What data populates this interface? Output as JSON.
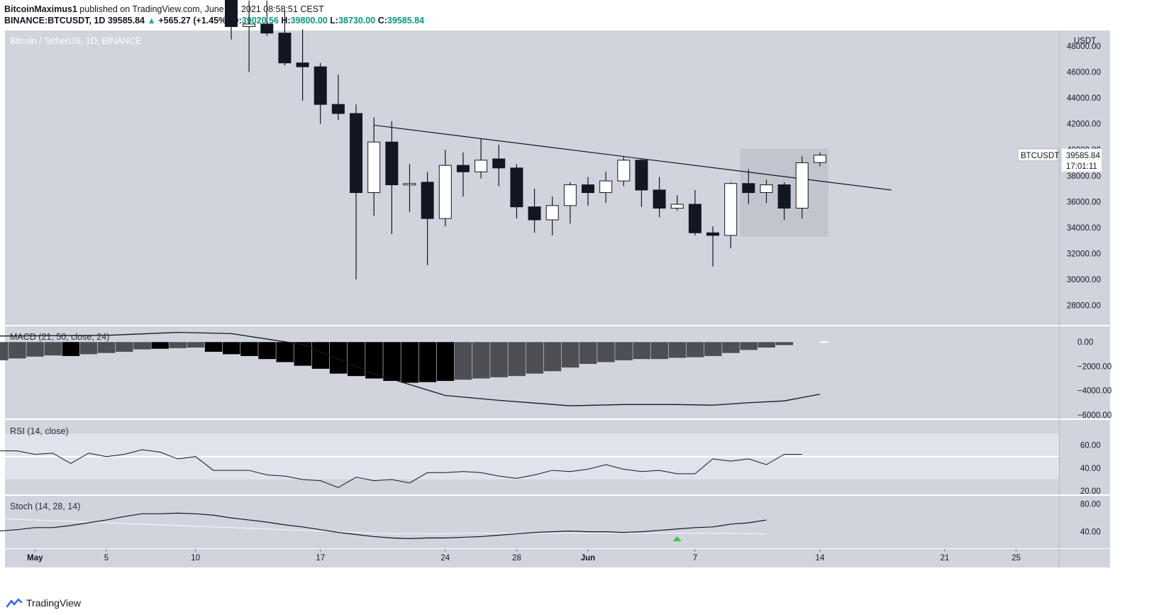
{
  "header": {
    "author": "BitcoinMaximus1",
    "published": "published on TradingView.com, June 14, 2021 08:58:51 CEST",
    "symbol_line": "BINANCE:BTCUSDT, 1D",
    "last": "39585.84",
    "change": "+565.27 (+1.45%)",
    "o_label": "O:",
    "o": "39020.56",
    "h_label": "H:",
    "h": "39800.00",
    "l_label": "L:",
    "l": "38730.00",
    "c_label": "C:",
    "c": "39585.84"
  },
  "footer": {
    "brand": "TradingView"
  },
  "colors": {
    "background": "#d1d4dc",
    "bull_body": "#ffffff",
    "bear_body": "#131722",
    "macd_hist": "#4d4f55",
    "macd_hist_dark": "#000000",
    "rsi_band": "#e0e3eb",
    "green_marker": "#2ecc40"
  },
  "chart_data": [
    {
      "type": "candlestick",
      "title": "Bitcoin / TetherUS, 1D, BINANCE",
      "price_axis_label": "USDT",
      "ylim": [
        26500,
        49200
      ],
      "y_ticks": [
        "48000.00",
        "46000.00",
        "44000.00",
        "42000.00",
        "40000.00",
        "38000.00",
        "36000.00",
        "34000.00",
        "32000.00",
        "30000.00",
        "28000.00"
      ],
      "x_ticks": [
        "May",
        "5",
        "10",
        "17",
        "24",
        "28",
        "Jun",
        "7",
        "14",
        "21",
        "25"
      ],
      "dates": [
        "2021-05-12",
        "2021-05-13",
        "2021-05-14",
        "2021-05-15",
        "2021-05-16",
        "2021-05-17",
        "2021-05-18",
        "2021-05-19",
        "2021-05-20",
        "2021-05-21",
        "2021-05-22",
        "2021-05-23",
        "2021-05-24",
        "2021-05-25",
        "2021-05-26",
        "2021-05-27",
        "2021-05-28",
        "2021-05-29",
        "2021-05-30",
        "2021-05-31",
        "2021-06-01",
        "2021-06-02",
        "2021-06-03",
        "2021-06-04",
        "2021-06-05",
        "2021-06-06",
        "2021-06-07",
        "2021-06-08",
        "2021-06-09",
        "2021-06-10",
        "2021-06-11",
        "2021-06-12",
        "2021-06-13",
        "2021-06-14"
      ],
      "candles": [
        {
          "o": 56700,
          "h": 58000,
          "l": 48500,
          "c": 49500
        },
        {
          "o": 49500,
          "h": 51500,
          "l": 46000,
          "c": 49700
        },
        {
          "o": 49700,
          "h": 51500,
          "l": 48800,
          "c": 49000
        },
        {
          "o": 49000,
          "h": 50700,
          "l": 46500,
          "c": 46700
        },
        {
          "o": 46700,
          "h": 49300,
          "l": 43800,
          "c": 46400
        },
        {
          "o": 46400,
          "h": 46700,
          "l": 42000,
          "c": 43500
        },
        {
          "o": 43500,
          "h": 45800,
          "l": 42300,
          "c": 42800
        },
        {
          "o": 42800,
          "h": 43500,
          "l": 30000,
          "c": 36700
        },
        {
          "o": 36700,
          "h": 42500,
          "l": 34900,
          "c": 40600
        },
        {
          "o": 40600,
          "h": 42200,
          "l": 33500,
          "c": 37300
        },
        {
          "o": 37300,
          "h": 38900,
          "l": 35200,
          "c": 37400
        },
        {
          "o": 37500,
          "h": 38300,
          "l": 31100,
          "c": 34700
        },
        {
          "o": 34700,
          "h": 40000,
          "l": 34100,
          "c": 38800
        },
        {
          "o": 38800,
          "h": 39800,
          "l": 36400,
          "c": 38300
        },
        {
          "o": 38300,
          "h": 40900,
          "l": 37800,
          "c": 39200
        },
        {
          "o": 39300,
          "h": 40400,
          "l": 37200,
          "c": 38600
        },
        {
          "o": 38600,
          "h": 38900,
          "l": 34700,
          "c": 35600
        },
        {
          "o": 35600,
          "h": 37000,
          "l": 33600,
          "c": 34600
        },
        {
          "o": 34600,
          "h": 36400,
          "l": 33400,
          "c": 35700
        },
        {
          "o": 35700,
          "h": 37500,
          "l": 34300,
          "c": 37300
        },
        {
          "o": 37300,
          "h": 37900,
          "l": 35700,
          "c": 36700
        },
        {
          "o": 36700,
          "h": 38300,
          "l": 35900,
          "c": 37600
        },
        {
          "o": 37600,
          "h": 39500,
          "l": 37200,
          "c": 39200
        },
        {
          "o": 39200,
          "h": 39300,
          "l": 35600,
          "c": 36900
        },
        {
          "o": 36900,
          "h": 37900,
          "l": 34800,
          "c": 35500
        },
        {
          "o": 35500,
          "h": 36500,
          "l": 35300,
          "c": 35800
        },
        {
          "o": 35800,
          "h": 36900,
          "l": 33400,
          "c": 33600
        },
        {
          "o": 33600,
          "h": 34100,
          "l": 31000,
          "c": 33400
        },
        {
          "o": 33400,
          "h": 37500,
          "l": 32400,
          "c": 37400
        },
        {
          "o": 37400,
          "h": 38500,
          "l": 35800,
          "c": 36700
        },
        {
          "o": 36700,
          "h": 37700,
          "l": 35900,
          "c": 37300
        },
        {
          "o": 37300,
          "h": 37500,
          "l": 34600,
          "c": 35500
        },
        {
          "o": 35500,
          "h": 39500,
          "l": 34700,
          "c": 39000
        },
        {
          "o": 39020.56,
          "h": 39800,
          "l": 38730,
          "c": 39585.84
        }
      ],
      "trendline": {
        "from": {
          "date": "2021-05-20",
          "price": 41900
        },
        "to": {
          "date": "2021-06-18",
          "price": 36900
        }
      },
      "price_label": {
        "symbol": "BTCUSDT",
        "price": "39585.84",
        "countdown": "17:01:11"
      }
    },
    {
      "type": "bar",
      "title": "MACD (21, 50, close, 24)",
      "ylim": [
        -6300,
        1300
      ],
      "y_ticks": [
        "0.00",
        "−2000.00",
        "−4000.00",
        "−6000.00"
      ],
      "hist_start_date": "2021-04-29",
      "hist": [
        -1500,
        -1350,
        -1200,
        -1100,
        -1150,
        -1000,
        -900,
        -800,
        -600,
        -550,
        -500,
        -450,
        -800,
        -1000,
        -1150,
        -1400,
        -1650,
        -1950,
        -2200,
        -2600,
        -2800,
        -3000,
        -3200,
        -3350,
        -3300,
        -3200,
        -3100,
        -3000,
        -2900,
        -2800,
        -2600,
        -2400,
        -2100,
        -1800,
        -1650,
        -1500,
        -1400,
        -1400,
        -1300,
        -1250,
        -1150,
        -900,
        -650,
        -450,
        -250,
        0
      ],
      "hist_dark": [
        4,
        12,
        13,
        14,
        15,
        16,
        17,
        18,
        19,
        20,
        21,
        22,
        23
      ],
      "macd_line": [
        {
          "date": "2021-04-29",
          "v": 500
        },
        {
          "date": "2021-05-05",
          "v": 550
        },
        {
          "date": "2021-05-09",
          "v": 800
        },
        {
          "date": "2021-05-12",
          "v": 700
        },
        {
          "date": "2021-05-16",
          "v": -200
        },
        {
          "date": "2021-05-20",
          "v": -2600
        },
        {
          "date": "2021-05-24",
          "v": -4400
        },
        {
          "date": "2021-05-27",
          "v": -4800
        },
        {
          "date": "2021-05-31",
          "v": -5250
        },
        {
          "date": "2021-06-03",
          "v": -5150
        },
        {
          "date": "2021-06-06",
          "v": -5150
        },
        {
          "date": "2021-06-08",
          "v": -5200
        },
        {
          "date": "2021-06-10",
          "v": -5000
        },
        {
          "date": "2021-06-12",
          "v": -4850
        },
        {
          "date": "2021-06-14",
          "v": -4300
        }
      ],
      "signal_line": [
        {
          "date": "2021-06-14",
          "v": 0
        }
      ]
    },
    {
      "type": "line",
      "title": "RSI (14, close)",
      "ylim": [
        17,
        82
      ],
      "y_ticks": [
        "60.00",
        "40.00",
        "20.00"
      ],
      "band": [
        30,
        70
      ],
      "midline": 50,
      "x_start_date": "2021-04-29",
      "values": [
        55,
        55,
        52,
        53,
        44,
        53,
        50,
        52,
        56,
        54,
        48,
        50,
        38,
        38,
        38,
        34,
        33,
        30,
        29,
        23,
        32,
        29,
        30,
        27,
        36,
        36,
        37,
        36,
        33,
        31,
        34,
        38,
        37,
        39,
        43,
        39,
        37,
        38,
        35,
        35,
        48,
        46,
        48,
        43,
        52,
        52
      ]
    },
    {
      "type": "line",
      "title": "Stoch (14, 28, 14)",
      "ylim": [
        16,
        92
      ],
      "y_ticks": [
        "80.00",
        "40.00"
      ],
      "x_start_date": "2021-04-29",
      "k": [
        41,
        43,
        46,
        46,
        49,
        53,
        57,
        62,
        66,
        66,
        67,
        66,
        64,
        60,
        57,
        54,
        50,
        47,
        43,
        39,
        36,
        33,
        31,
        30,
        31,
        31,
        32,
        33,
        35,
        37,
        39,
        40,
        41,
        40,
        40,
        39,
        40,
        42,
        44,
        46,
        47,
        51,
        53,
        57
      ],
      "d": [
        60,
        58,
        57,
        56,
        55,
        54,
        53,
        52,
        51,
        50,
        49,
        48,
        47,
        46,
        45,
        44,
        43,
        42,
        41,
        40,
        39,
        38,
        37,
        37,
        37,
        37,
        38,
        38,
        38,
        38,
        38,
        38,
        38,
        38,
        38,
        38,
        38,
        38,
        38,
        38,
        38,
        38,
        37,
        37
      ],
      "marker": {
        "date": "2021-06-06",
        "type": "triangle-up"
      }
    }
  ]
}
